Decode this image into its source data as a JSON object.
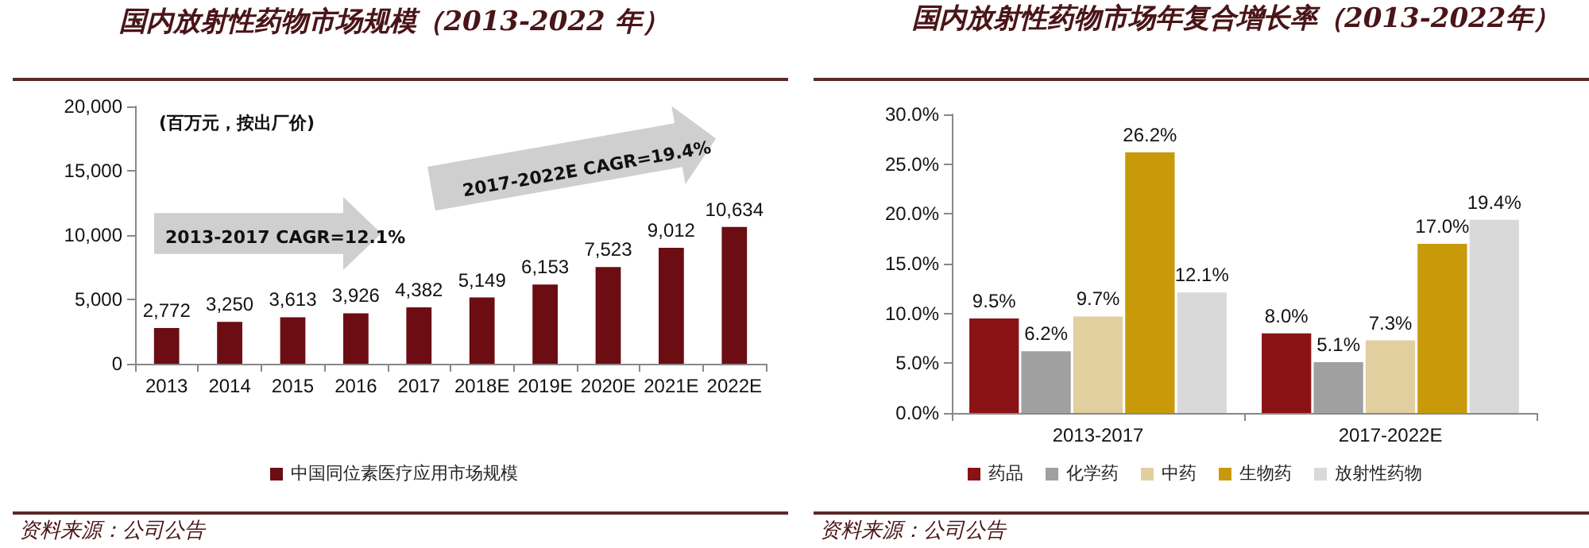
{
  "chart_data": [
    {
      "type": "bar",
      "title": "国内放射性药物市场规模（2013-2022 年）",
      "categories": [
        "2013",
        "2014",
        "2015",
        "2016",
        "2017",
        "2018E",
        "2019E",
        "2020E",
        "2021E",
        "2022E"
      ],
      "series": [
        {
          "name": "中国同位素医疗应用市场规模",
          "color": "#6b0d12",
          "values": [
            2772,
            3250,
            3613,
            3926,
            4382,
            5149,
            6153,
            7523,
            9012,
            10634
          ],
          "value_labels": [
            "2,772",
            "3,250",
            "3,613",
            "3,926",
            "4,382",
            "5,149",
            "6,153",
            "7,523",
            "9,012",
            "10,634"
          ]
        }
      ],
      "ylim": [
        0,
        20000
      ],
      "yticks": [
        0,
        {
          "value": 5000,
          "label": "5,000"
        },
        {
          "value": 10000,
          "label": "10,000"
        },
        {
          "value": 15000,
          "label": "15,000"
        },
        {
          "value": 20000,
          "label": "20,000"
        }
      ],
      "grid": false,
      "legend": "bottom",
      "annotations": [
        "(百万元，按出厂价)",
        "2013-2017 CAGR=12.1%",
        "2017-2022E CAGR=19.4%",
        "资料来源：公司公告"
      ]
    },
    {
      "type": "bar",
      "title": "国内放射性药物市场年复合增长率（2013-2022年）",
      "categories": [
        "2013-2017",
        "2017-2022E"
      ],
      "series": [
        {
          "name": "药品",
          "color": "#8b1214",
          "values": [
            9.5,
            8.0
          ],
          "value_labels": [
            "9.5%",
            "8.0%"
          ]
        },
        {
          "name": "化学药",
          "color": "#a0a0a0",
          "values": [
            6.2,
            5.1
          ],
          "value_labels": [
            "6.2%",
            "5.1%"
          ]
        },
        {
          "name": "中药",
          "color": "#e2cfa0",
          "values": [
            9.7,
            7.3
          ],
          "value_labels": [
            "9.7%",
            "7.3%"
          ]
        },
        {
          "name": "生物药",
          "color": "#c89a0a",
          "values": [
            26.2,
            17.0
          ],
          "value_labels": [
            "26.2%",
            "17.0%"
          ]
        },
        {
          "name": "放射性药物",
          "color": "#d9d9d9",
          "values": [
            12.1,
            19.4
          ],
          "value_labels": [
            "12.1%",
            "19.4%"
          ]
        }
      ],
      "ylim": [
        0,
        30
      ],
      "yticks": [
        {
          "value": 0,
          "label": "0.0%"
        },
        {
          "value": 5,
          "label": "5.0%"
        },
        {
          "value": 10,
          "label": "10.0%"
        },
        {
          "value": 15,
          "label": "15.0%"
        },
        {
          "value": 20,
          "label": "20.0%"
        },
        {
          "value": 25,
          "label": "25.0%"
        },
        {
          "value": 30,
          "label": "30.0%"
        }
      ],
      "grid": false,
      "legend": "bottom",
      "annotations": [
        "资料来源：公司公告"
      ]
    }
  ]
}
